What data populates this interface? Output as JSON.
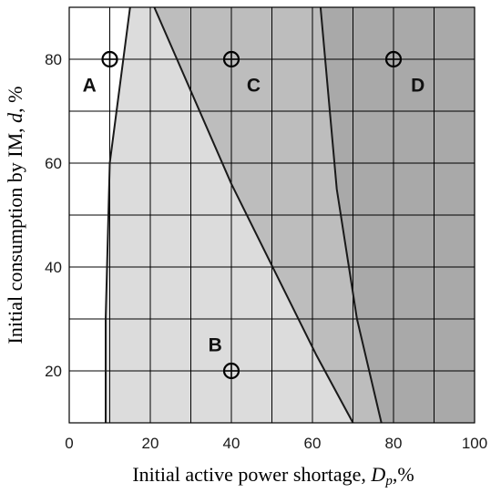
{
  "chart_data": {
    "type": "region",
    "xlabel": "Initial active power shortage, Dp,%",
    "xlabel_parts": {
      "main": "Initial active power shortage, ",
      "var": "D",
      "sub": "p",
      "tail": ",%"
    },
    "ylabel": "Initial consumption by IM, d, %",
    "ylabel_parts": {
      "main": "Initial consumption by IM, ",
      "var": "d",
      "tail": ", %"
    },
    "xlim": [
      0,
      100
    ],
    "ylim": [
      10,
      90
    ],
    "x_ticks": [
      0,
      20,
      40,
      60,
      80,
      100
    ],
    "y_ticks": [
      20,
      40,
      60,
      80
    ],
    "grid": true,
    "regions": [
      {
        "name": "A",
        "color": "#ffffff"
      },
      {
        "name": "B",
        "color": "#dcdcdc"
      },
      {
        "name": "C",
        "color": "#bdbdbd"
      },
      {
        "name": "D",
        "color": "#a9a9a9"
      }
    ],
    "boundaries": {
      "A_B": [
        [
          9,
          10
        ],
        [
          9,
          30
        ],
        [
          10,
          60
        ],
        [
          15,
          90
        ]
      ],
      "B_C": [
        [
          21,
          90
        ],
        [
          40,
          56
        ],
        [
          61,
          23
        ],
        [
          70,
          10
        ]
      ],
      "C_D": [
        [
          62,
          90
        ],
        [
          66,
          55
        ],
        [
          71,
          30
        ],
        [
          77,
          10
        ]
      ]
    },
    "points": [
      {
        "label": "A",
        "x": 10,
        "y": 80
      },
      {
        "label": "C",
        "x": 40,
        "y": 80
      },
      {
        "label": "D",
        "x": 80,
        "y": 80
      },
      {
        "label": "B",
        "x": 40,
        "y": 20
      }
    ],
    "labels": [
      {
        "text": "A",
        "x": 5,
        "y": 75
      },
      {
        "text": "C",
        "x": 45.5,
        "y": 75
      },
      {
        "text": "D",
        "x": 86,
        "y": 75
      },
      {
        "text": "B",
        "x": 36,
        "y": 25
      }
    ]
  }
}
